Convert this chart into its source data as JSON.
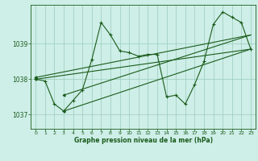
{
  "xlabel": "Graphe pression niveau de la mer (hPa)",
  "bg_color": "#ceeee8",
  "grid_color": "#99ccbb",
  "line_color": "#1a5c1a",
  "xlim": [
    -0.5,
    23.5
  ],
  "ylim": [
    1036.6,
    1040.1
  ],
  "yticks": [
    1037,
    1038,
    1039
  ],
  "xticks": [
    0,
    1,
    2,
    3,
    4,
    5,
    6,
    7,
    8,
    9,
    10,
    11,
    12,
    13,
    14,
    15,
    16,
    17,
    18,
    19,
    20,
    21,
    22,
    23
  ],
  "main_x": [
    0,
    1,
    2,
    3,
    4,
    5,
    6,
    7,
    8,
    9,
    10,
    11,
    12,
    13,
    14,
    15,
    16,
    17,
    18,
    19,
    20,
    21,
    22,
    23
  ],
  "main_y": [
    1038.0,
    1037.95,
    1037.3,
    1037.1,
    1037.4,
    1037.7,
    1038.55,
    1039.6,
    1039.25,
    1038.8,
    1038.75,
    1038.65,
    1038.7,
    1038.7,
    1037.5,
    1037.55,
    1037.3,
    1037.85,
    1038.5,
    1039.55,
    1039.9,
    1039.75,
    1039.6,
    1038.85
  ],
  "tline1_x": [
    0,
    23
  ],
  "tline1_y": [
    1038.0,
    1038.85
  ],
  "tline2_x": [
    3,
    23
  ],
  "tline2_y": [
    1037.1,
    1038.85
  ],
  "tline3_x": [
    3,
    23
  ],
  "tline3_y": [
    1037.55,
    1039.25
  ],
  "tline4_x": [
    0,
    23
  ],
  "tline4_y": [
    1038.05,
    1039.25
  ]
}
